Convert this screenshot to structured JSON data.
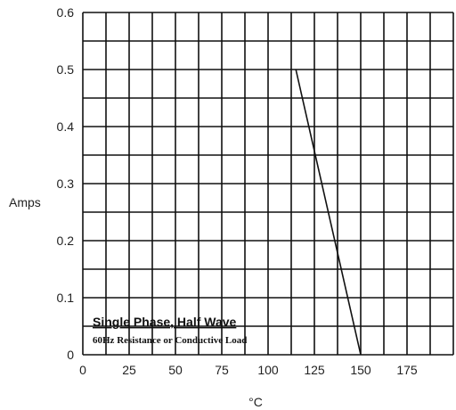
{
  "chart_data": {
    "type": "line",
    "title": "",
    "xlabel": "°C",
    "ylabel": "Amps",
    "xlim": [
      0,
      200
    ],
    "ylim": [
      0,
      0.6
    ],
    "x_ticks": [
      "0",
      "25",
      "50",
      "75",
      "100",
      "125",
      "150",
      "175"
    ],
    "y_ticks": [
      "0",
      "0.1",
      "0.2",
      "0.3",
      "0.4",
      "0.5",
      "0.6"
    ],
    "grid": true,
    "series": [
      {
        "x": [
          115,
          150
        ],
        "y": [
          0.5,
          0.0
        ]
      }
    ],
    "annotations": {
      "line1": "Single Phase, Half Wave",
      "line2": "60Hz Resistance or Conductive Load"
    },
    "colors": {
      "grid": "#111111",
      "line": "#111111"
    }
  }
}
